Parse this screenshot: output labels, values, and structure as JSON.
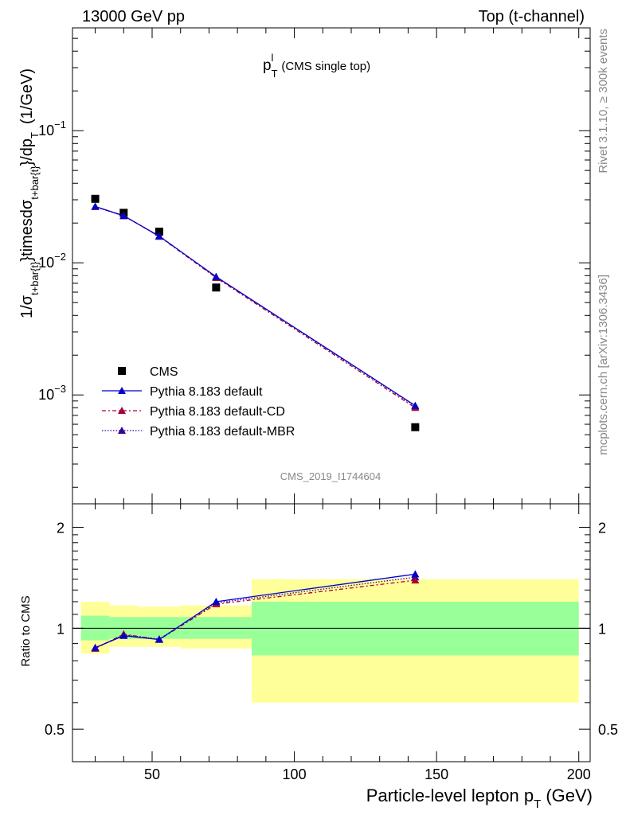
{
  "header": {
    "left": "13000 GeV pp",
    "right": "Top (t-channel)"
  },
  "side": {
    "rivet": "Rivet 3.1.10, ≥ 300k events",
    "mcplots": "mcplots.cern.ch [arXiv:1306.3436]"
  },
  "watermark": "CMS_2019_I1744604",
  "colors": {
    "data": "#000000",
    "default": "#0000cc",
    "cd": "#aa0033",
    "mbr": "#330099",
    "band_outer": "#ffff99",
    "band_inner": "#99ff99"
  },
  "chart_data": {
    "type": "line",
    "title": "p_T^l (CMS single top)",
    "title_main": "p",
    "title_sup": "l",
    "title_sub": "T",
    "title_rest": "(CMS single top)",
    "xlabel": "Particle-level lepton p_T (GeV)",
    "xlabel_main": "Particle-level lepton p",
    "xlabel_sub": "T",
    "xlabel_unit": "(GeV)",
    "ylabel": "1/σ_{t+bar{t}} }timesdσ_{t+bar{t}} }/dp_T (1/GeV)",
    "ylabel_parts": {
      "a": "1/σ",
      "b": "t+bar{t}",
      "c": "}timesdσ",
      "d": "t+bar{t}",
      "e": "}/dp",
      "f": "T",
      "g": "(1/GeV)"
    },
    "ratio_ylabel": "Ratio to CMS",
    "xlim": [
      22,
      204
    ],
    "ylim": [
      0.00015,
      0.6
    ],
    "yscale": "log",
    "ratio_ylim": [
      0.4,
      2.35
    ],
    "ratio_scale": "log",
    "x_ticks": [
      50,
      100,
      150,
      200
    ],
    "x_tick_labels": [
      "50",
      "100",
      "150",
      "200"
    ],
    "y_tick_labels": [
      {
        "base": "10",
        "exp": "−1",
        "value": 0.1
      },
      {
        "base": "10",
        "exp": "−2",
        "value": 0.01
      },
      {
        "base": "10",
        "exp": "−3",
        "value": 0.001
      }
    ],
    "ratio_ticks": [
      {
        "value": 0.5,
        "label": "0.5"
      },
      {
        "value": 1,
        "label": "1"
      },
      {
        "value": 2,
        "label": "2"
      }
    ],
    "bins": [
      {
        "lo": 25,
        "hi": 35,
        "x": 30,
        "data": 0.0305,
        "band_outer": [
          0.84,
          1.2
        ],
        "band_inner": [
          0.92,
          1.09
        ]
      },
      {
        "lo": 35,
        "hi": 45,
        "x": 40,
        "data": 0.0239,
        "band_outer": [
          0.88,
          1.17
        ],
        "band_inner": [
          0.93,
          1.08
        ]
      },
      {
        "lo": 45,
        "hi": 60,
        "x": 52.5,
        "data": 0.0172,
        "band_outer": [
          0.88,
          1.16
        ],
        "band_inner": [
          0.93,
          1.08
        ]
      },
      {
        "lo": 60,
        "hi": 85,
        "x": 72.5,
        "data": 0.0065,
        "band_outer": [
          0.87,
          1.17
        ],
        "band_inner": [
          0.93,
          1.08
        ]
      },
      {
        "lo": 85,
        "hi": 200,
        "x": 142.5,
        "data": 0.00057,
        "band_outer": [
          0.6,
          1.4
        ],
        "band_inner": [
          0.83,
          1.2
        ]
      }
    ],
    "series": [
      {
        "name": "CMS",
        "kind": "data"
      },
      {
        "name": "Pythia 8.183 default",
        "kind": "mc",
        "color_key": "default",
        "dash": "",
        "values": [
          0.0267,
          0.0227,
          0.0159,
          0.00785,
          0.00083
        ],
        "ratio": [
          0.875,
          0.95,
          0.925,
          1.2,
          1.45
        ],
        "ratio_err": [
          0.0,
          0.01,
          0.0,
          0.01,
          0.03
        ]
      },
      {
        "name": "Pythia 8.183 default-CD",
        "kind": "mc",
        "color_key": "cd",
        "dash": "5,3,2,3",
        "values": [
          0.0265,
          0.0228,
          0.0158,
          0.0077,
          0.0008
        ],
        "ratio": [
          0.87,
          0.96,
          0.925,
          1.18,
          1.39
        ],
        "ratio_err": [
          0,
          0,
          0,
          0,
          0
        ]
      },
      {
        "name": "Pythia 8.183 default-MBR",
        "kind": "mc",
        "color_key": "mbr",
        "dash": "1.5,2",
        "values": [
          0.0266,
          0.0226,
          0.016,
          0.0078,
          0.00082
        ],
        "ratio": [
          0.872,
          0.955,
          0.928,
          1.19,
          1.42
        ],
        "ratio_err": [
          0,
          0,
          0,
          0,
          0
        ]
      }
    ]
  }
}
